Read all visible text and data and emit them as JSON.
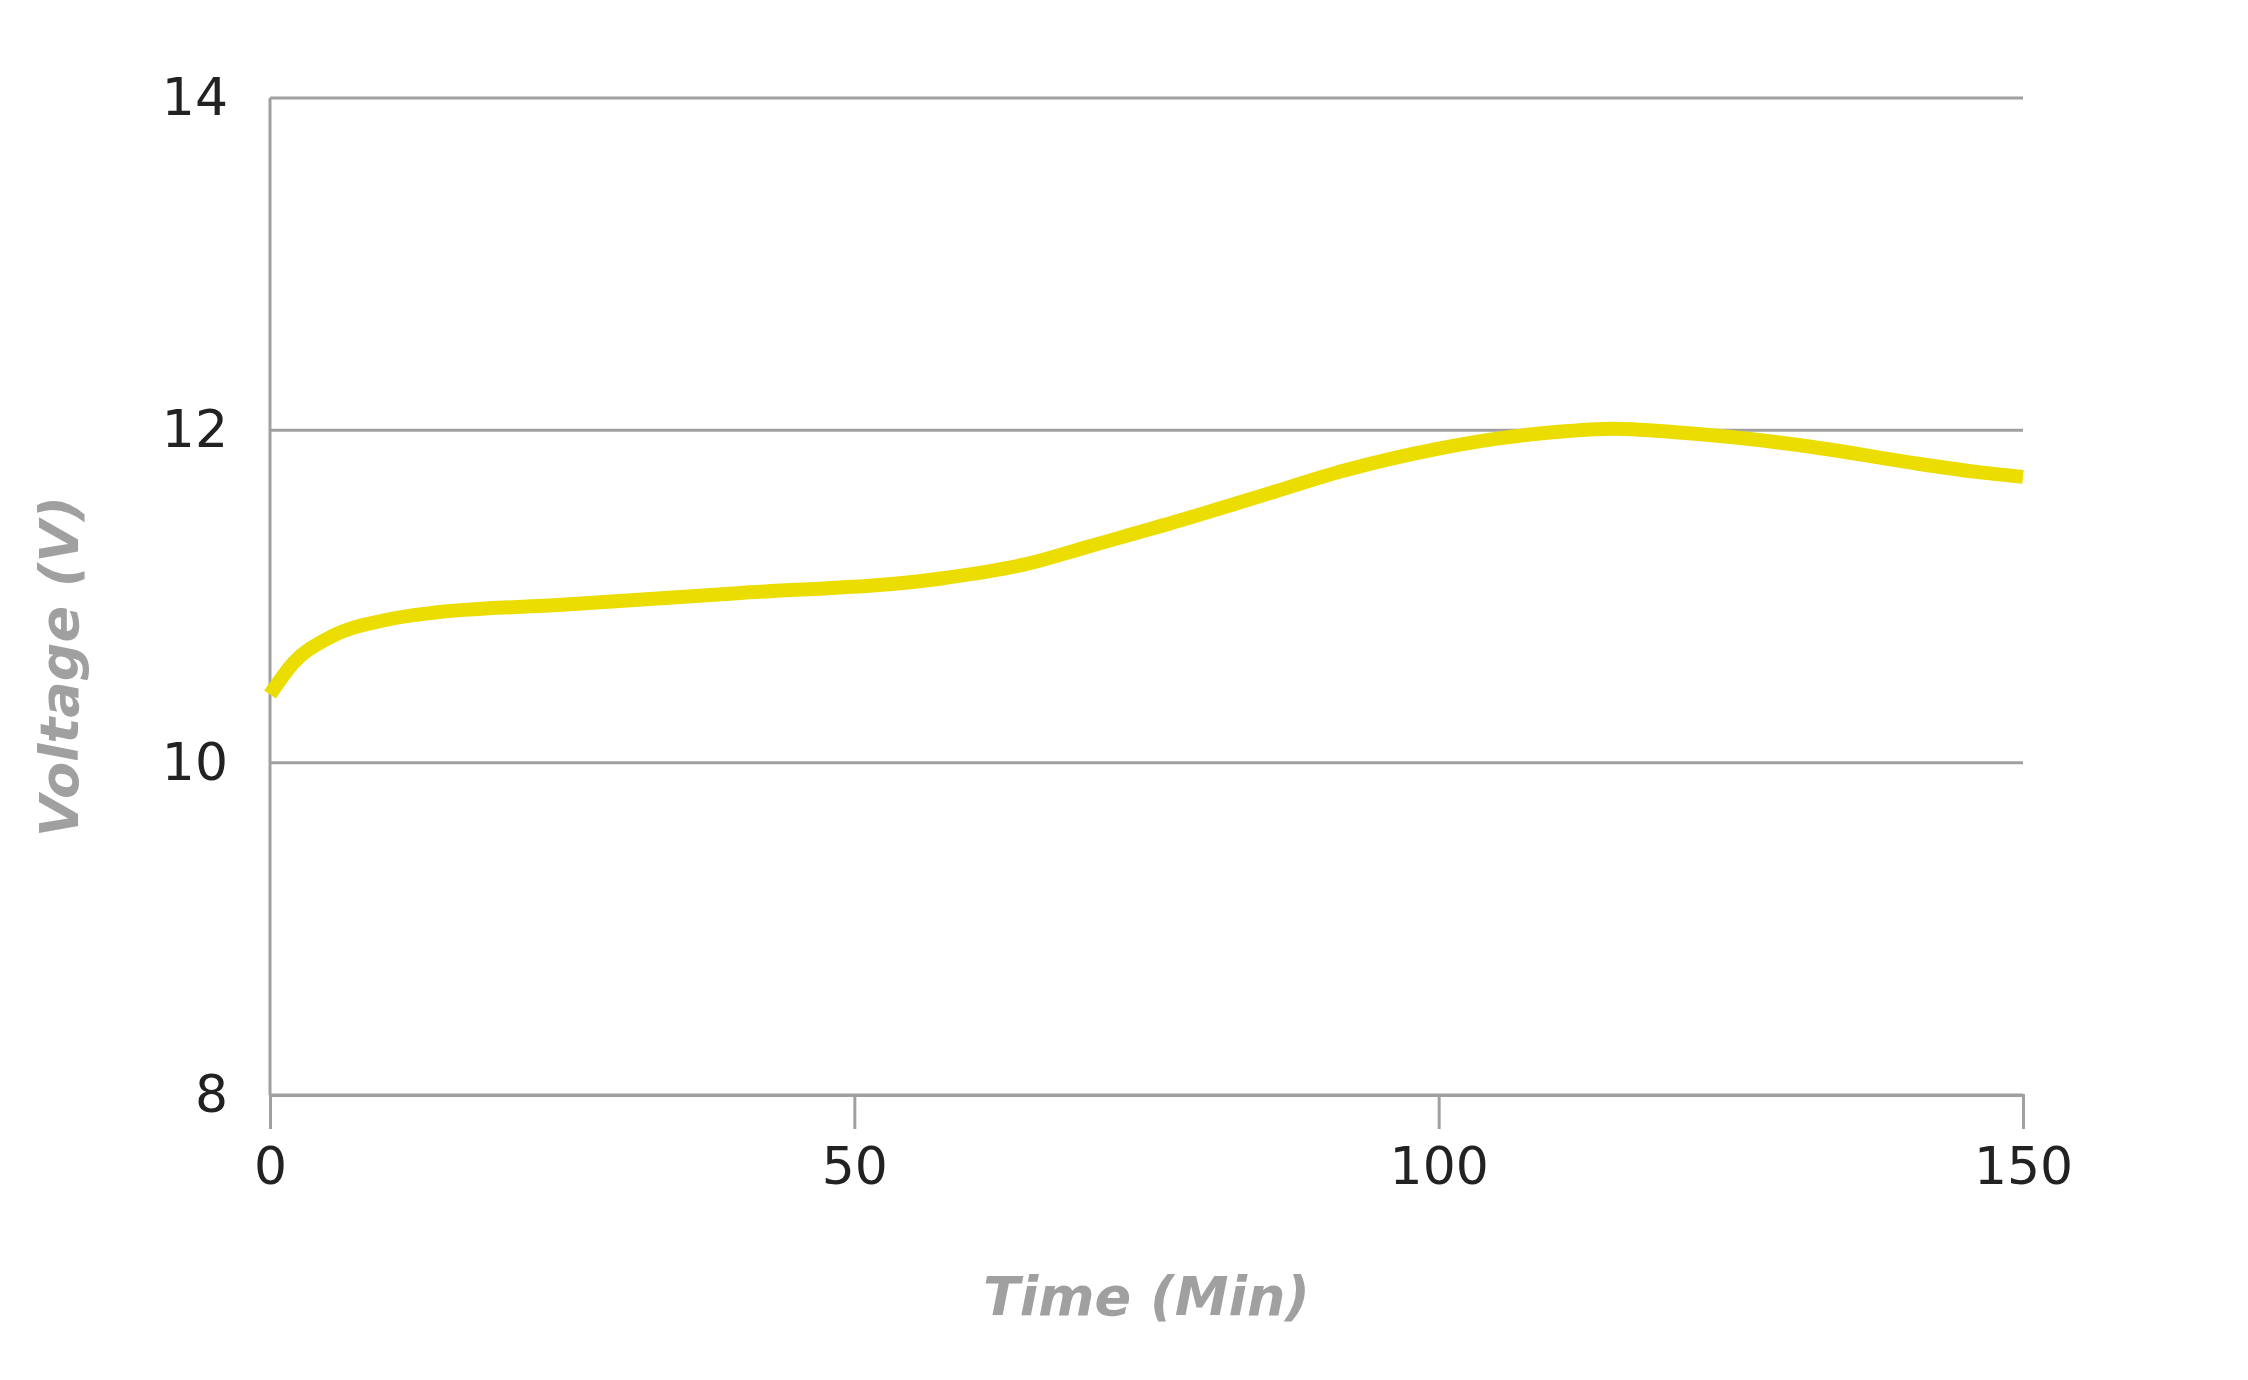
{
  "chart_data": {
    "type": "line",
    "xlabel": "Time (Min)",
    "ylabel": "Voltage (V)",
    "x": [
      0,
      2,
      5,
      10,
      13.7,
      25,
      40,
      57.6,
      65,
      70,
      78,
      85,
      92,
      100,
      105,
      110,
      115,
      120,
      125,
      132,
      140,
      146,
      150
    ],
    "series": [
      {
        "color": "#ebdd00",
        "values": [
          10.41,
          10.6,
          10.75,
          10.86,
          10.9,
          10.95,
          11.02,
          11.11,
          11.2,
          11.3,
          11.46,
          11.61,
          11.76,
          11.89,
          11.95,
          11.99,
          12.01,
          11.99,
          11.96,
          11.9,
          11.81,
          11.75,
          11.72
        ]
      }
    ],
    "xlim": [
      0,
      150
    ],
    "xticks": [
      0,
      50,
      100,
      150
    ],
    "ylim": [
      8,
      14
    ],
    "yticks": [
      8,
      10,
      12,
      14
    ],
    "grid": "y",
    "marker": "none",
    "line_style": "solid"
  }
}
